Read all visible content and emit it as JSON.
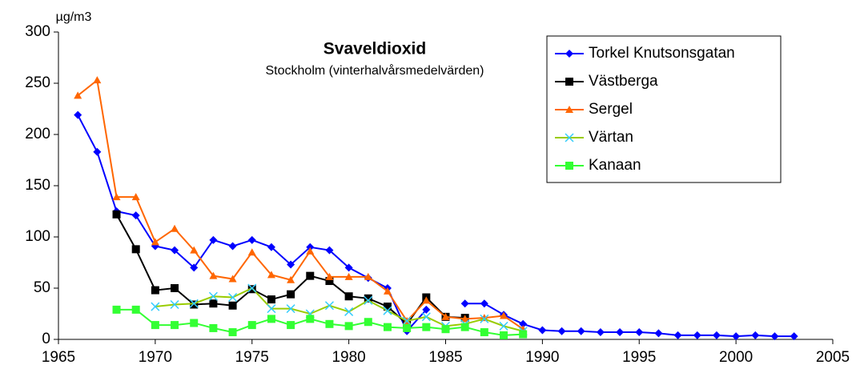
{
  "chart_data": {
    "type": "line",
    "title": "Svaveldioxid",
    "subtitle": "Stockholm (vinterhalvårsmedelvärden)",
    "y_label": "µg/m3",
    "x": [
      1966,
      1967,
      1968,
      1969,
      1970,
      1971,
      1972,
      1973,
      1974,
      1975,
      1976,
      1977,
      1978,
      1979,
      1980,
      1981,
      1982,
      1983,
      1984,
      1985,
      1986,
      1987,
      1988,
      1989,
      1990,
      1991,
      1992,
      1993,
      1994,
      1995,
      1996,
      1997,
      1998,
      1999,
      2000,
      2001,
      2002,
      2003
    ],
    "series": [
      {
        "name": "Torkel Knutsonsgatan",
        "color": "#0000ff",
        "marker": "diamond",
        "marker_color": "#0000ff",
        "values": [
          219,
          183,
          125,
          121,
          91,
          87,
          70,
          97,
          91,
          97,
          90,
          73,
          90,
          87,
          70,
          60,
          50,
          8,
          29,
          null,
          35,
          35,
          24,
          15,
          9,
          8,
          8,
          7,
          7,
          7,
          6,
          4,
          4,
          4,
          3,
          4,
          3,
          3
        ]
      },
      {
        "name": "Västberga",
        "color": "#000000",
        "marker": "square",
        "marker_color": "#000000",
        "values": [
          null,
          null,
          122,
          88,
          48,
          50,
          34,
          35,
          33,
          49,
          39,
          44,
          62,
          57,
          42,
          40,
          32,
          15,
          41,
          22,
          21,
          null,
          null,
          null,
          null,
          null,
          null,
          null,
          null,
          null,
          null,
          null,
          null,
          null,
          null,
          null,
          null,
          null
        ]
      },
      {
        "name": "Sergel",
        "color": "#ff6600",
        "marker": "triangle",
        "marker_color": "#ff6600",
        "values": [
          238,
          253,
          139,
          139,
          95,
          108,
          87,
          62,
          59,
          85,
          63,
          58,
          86,
          61,
          61,
          61,
          47,
          18,
          38,
          22,
          20,
          21,
          23,
          10,
          null,
          null,
          null,
          null,
          null,
          null,
          null,
          null,
          null,
          null,
          null,
          null,
          null,
          null
        ]
      },
      {
        "name": "Värtan",
        "color": "#99cc00",
        "marker": "x",
        "marker_color": "#33ccff",
        "values": [
          null,
          null,
          null,
          null,
          32,
          34,
          35,
          42,
          41,
          50,
          30,
          30,
          25,
          33,
          27,
          38,
          28,
          18,
          22,
          13,
          15,
          20,
          13,
          8,
          null,
          null,
          null,
          null,
          null,
          null,
          null,
          null,
          null,
          null,
          null,
          null,
          null,
          null
        ]
      },
      {
        "name": "Kanaan",
        "color": "#33ff33",
        "marker": "square",
        "marker_color": "#33ff33",
        "values": [
          null,
          null,
          29,
          29,
          14,
          14,
          16,
          11,
          7,
          14,
          20,
          14,
          20,
          15,
          13,
          17,
          12,
          11,
          12,
          10,
          12,
          7,
          4,
          5,
          null,
          null,
          null,
          null,
          null,
          null,
          null,
          null,
          null,
          null,
          null,
          null,
          null,
          null
        ]
      }
    ],
    "xlim": [
      1965,
      2005
    ],
    "xticks": [
      1965,
      1970,
      1975,
      1980,
      1985,
      1990,
      1995,
      2000,
      2005
    ],
    "ylim": [
      0,
      300
    ],
    "yticks": [
      0,
      50,
      100,
      150,
      200,
      250,
      300
    ],
    "grid": false,
    "legend": "top-right"
  }
}
